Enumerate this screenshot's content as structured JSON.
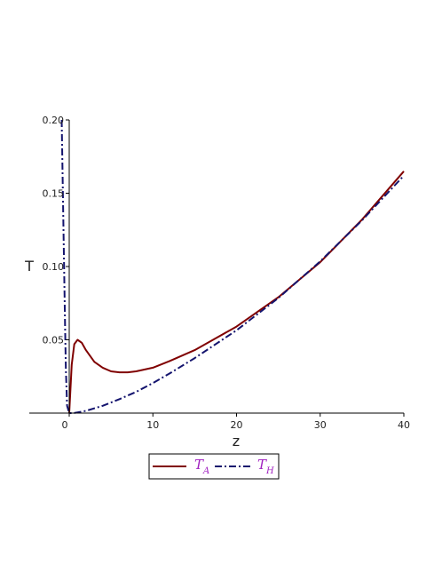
{
  "chart_data": {
    "type": "line",
    "title": "",
    "xlabel": "z",
    "ylabel": "T",
    "xlim": [
      -5,
      40
    ],
    "ylim": [
      0,
      0.2
    ],
    "x_ticks": [
      {
        "value": 0,
        "label": "0"
      },
      {
        "value": 10,
        "label": "10"
      },
      {
        "value": 20,
        "label": "20"
      },
      {
        "value": 30,
        "label": "30"
      },
      {
        "value": 40,
        "label": "40"
      }
    ],
    "y_ticks": [
      {
        "value": 0.05,
        "label": "0.05"
      },
      {
        "value": 0.1,
        "label": "0.10"
      },
      {
        "value": 0.15,
        "label": "0.15"
      },
      {
        "value": 0.2,
        "label": "0.20"
      }
    ],
    "grid": false,
    "legend_position": "bottom",
    "series": [
      {
        "id": "T_A",
        "label_main": "T",
        "label_sub": "A",
        "color": "#800000",
        "style": "solid",
        "x": [
          0,
          0.3,
          0.6,
          1.0,
          1.5,
          2,
          3,
          4,
          5,
          6,
          7,
          8,
          10,
          12,
          15,
          20,
          25,
          30,
          35,
          40
        ],
        "y": [
          0,
          0.033,
          0.047,
          0.05,
          0.048,
          0.043,
          0.035,
          0.031,
          0.0285,
          0.0278,
          0.0278,
          0.0285,
          0.031,
          0.0355,
          0.043,
          0.059,
          0.079,
          0.103,
          0.132,
          0.165
        ]
      },
      {
        "id": "T_H",
        "label_main": "T",
        "label_sub": "H",
        "color": "#14146e",
        "style": "dashdot",
        "x": [
          -0.9,
          -0.7,
          -0.5,
          -0.4,
          -0.25,
          0,
          0.5,
          1,
          2,
          4,
          6,
          8,
          10,
          12,
          15,
          20,
          25,
          30,
          35,
          40
        ],
        "y": [
          0.2,
          0.13,
          0.06,
          0.03,
          0.005,
          0,
          0,
          0.0005,
          0.0015,
          0.005,
          0.0095,
          0.0145,
          0.0205,
          0.027,
          0.0375,
          0.0565,
          0.0785,
          0.1035,
          0.1315,
          0.162
        ]
      }
    ]
  }
}
